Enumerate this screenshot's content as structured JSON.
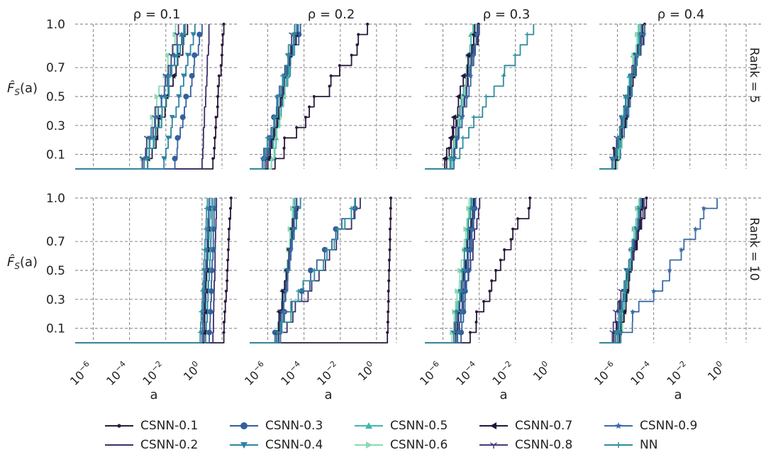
{
  "chart_data": {
    "type": "line",
    "title": "",
    "xlabel": "a",
    "ylabel": "F̂_S(a)",
    "x_scale": "log10",
    "xlim_log10": [
      -7,
      2
    ],
    "ylim": [
      0,
      1
    ],
    "x_tick_exponents": [
      -6,
      -4,
      -2,
      0
    ],
    "x_tick_base": "10",
    "y_ticks": [
      0.1,
      0.3,
      0.5,
      0.7,
      1.0
    ],
    "y_tick_labels": [
      "0.1",
      "0.3",
      "0.5",
      "0.7",
      "1.0"
    ],
    "col_titles": [
      "ρ = 0.1",
      "ρ = 0.2",
      "ρ = 0.3",
      "ρ = 0.4"
    ],
    "row_titles": [
      "Rank = 5",
      "Rank = 10"
    ],
    "series_colors": {
      "CSNN-0.1": "#2b1a3c",
      "CSNN-0.2": "#3a2f6b",
      "CSNN-0.3": "#34609c",
      "CSNN-0.4": "#2d83a4",
      "CSNN-0.5": "#3fb6ae",
      "CSNN-0.6": "#8ad9b4",
      "CSNN-0.7": "#24163a",
      "CSNN-0.8": "#413d7a",
      "CSNN-0.9": "#3a6ba6",
      "NN": "#2e8d9c"
    },
    "legend": [
      {
        "label": "CSNN-0.1",
        "marker": "dot"
      },
      {
        "label": "CSNN-0.2",
        "marker": "none"
      },
      {
        "label": "CSNN-0.3",
        "marker": "circle"
      },
      {
        "label": "CSNN-0.4",
        "marker": "triangle-down"
      },
      {
        "label": "CSNN-0.5",
        "marker": "triangle-up"
      },
      {
        "label": "CSNN-0.6",
        "marker": "triangle-right"
      },
      {
        "label": "CSNN-0.7",
        "marker": "triangle-left"
      },
      {
        "label": "CSNN-0.8",
        "marker": "tri"
      },
      {
        "label": "CSNN-0.9",
        "marker": "star"
      },
      {
        "label": "NN",
        "marker": "plus"
      }
    ],
    "legend_position": "bottom-center",
    "panels": [
      {
        "row": 0,
        "col": 0,
        "series": [
          {
            "name": "CSNN-0.1",
            "range_log10": [
              0.6,
              1.2
            ]
          },
          {
            "name": "CSNN-0.2",
            "range_log10": [
              0.0,
              0.4
            ]
          },
          {
            "name": "CSNN-0.3",
            "range_log10": [
              -1.5,
              0.0
            ]
          },
          {
            "name": "CSNN-0.4",
            "range_log10": [
              -2.1,
              -0.3
            ]
          },
          {
            "name": "CSNN-0.5",
            "range_log10": [
              -3.0,
              -1.0
            ]
          },
          {
            "name": "CSNN-0.6",
            "range_log10": [
              -3.3,
              -1.4
            ]
          },
          {
            "name": "CSNN-0.7",
            "range_log10": [
              -3.0,
              -0.8
            ]
          },
          {
            "name": "CSNN-0.8",
            "range_log10": [
              -3.3,
              -1.2
            ]
          },
          {
            "name": "CSNN-0.9",
            "range_log10": [
              -3.2,
              -1.0
            ]
          },
          {
            "name": "NN",
            "range_log10": [
              -3.0,
              -0.9
            ]
          }
        ]
      },
      {
        "row": 0,
        "col": 1,
        "series": [
          {
            "name": "CSNN-0.1",
            "range_log10": [
              -5.6,
              -0.5
            ]
          },
          {
            "name": "CSNN-0.2",
            "range_log10": [
              -6.0,
              -4.3
            ]
          },
          {
            "name": "CSNN-0.3",
            "range_log10": [
              -6.2,
              -4.2
            ]
          },
          {
            "name": "CSNN-0.4",
            "range_log10": [
              -6.0,
              -4.3
            ]
          },
          {
            "name": "CSNN-0.5",
            "range_log10": [
              -5.8,
              -4.4
            ]
          },
          {
            "name": "CSNN-0.6",
            "range_log10": [
              -5.8,
              -4.5
            ]
          },
          {
            "name": "CSNN-0.7",
            "range_log10": [
              -6.0,
              -4.4
            ]
          },
          {
            "name": "CSNN-0.8",
            "range_log10": [
              -6.1,
              -4.5
            ]
          },
          {
            "name": "CSNN-0.9",
            "range_log10": [
              -6.3,
              -4.4
            ]
          },
          {
            "name": "NN",
            "range_log10": [
              -6.2,
              -4.5
            ]
          }
        ]
      },
      {
        "row": 0,
        "col": 2,
        "series": [
          {
            "name": "CSNN-0.1",
            "range_log10": [
              -5.8,
              -4.0
            ]
          },
          {
            "name": "CSNN-0.2",
            "range_log10": [
              -5.6,
              -4.0
            ]
          },
          {
            "name": "CSNN-0.3",
            "range_log10": [
              -5.5,
              -4.2
            ]
          },
          {
            "name": "CSNN-0.4",
            "range_log10": [
              -5.6,
              -4.1
            ]
          },
          {
            "name": "CSNN-0.5",
            "range_log10": [
              -5.5,
              -4.3
            ]
          },
          {
            "name": "CSNN-0.6",
            "range_log10": [
              -5.6,
              -4.2
            ]
          },
          {
            "name": "CSNN-0.7",
            "range_log10": [
              -5.9,
              -4.2
            ]
          },
          {
            "name": "CSNN-0.8",
            "range_log10": [
              -5.4,
              -4.1
            ]
          },
          {
            "name": "CSNN-0.9",
            "range_log10": [
              -5.4,
              -4.0
            ]
          },
          {
            "name": "NN",
            "range_log10": [
              -5.6,
              -1.0
            ]
          }
        ]
      },
      {
        "row": 0,
        "col": 3,
        "series": [
          {
            "name": "CSNN-0.1",
            "range_log10": [
              -6.3,
              -4.5
            ]
          },
          {
            "name": "CSNN-0.2",
            "range_log10": [
              -6.2,
              -4.6
            ]
          },
          {
            "name": "CSNN-0.3",
            "range_log10": [
              -6.0,
              -4.7
            ]
          },
          {
            "name": "CSNN-0.4",
            "range_log10": [
              -6.0,
              -4.6
            ]
          },
          {
            "name": "CSNN-0.5",
            "range_log10": [
              -6.1,
              -4.8
            ]
          },
          {
            "name": "CSNN-0.6",
            "range_log10": [
              -6.0,
              -4.8
            ]
          },
          {
            "name": "CSNN-0.7",
            "range_log10": [
              -6.1,
              -4.6
            ]
          },
          {
            "name": "CSNN-0.8",
            "range_log10": [
              -6.3,
              -4.6
            ]
          },
          {
            "name": "CSNN-0.9",
            "range_log10": [
              -6.3,
              -4.5
            ]
          },
          {
            "name": "NN",
            "range_log10": [
              -6.2,
              -4.6
            ]
          }
        ]
      },
      {
        "row": 1,
        "col": 0,
        "series": [
          {
            "name": "CSNN-0.1",
            "range_log10": [
              1.2,
              1.6
            ]
          },
          {
            "name": "CSNN-0.2",
            "range_log10": [
              0.6,
              0.8
            ]
          },
          {
            "name": "CSNN-0.3",
            "range_log10": [
              0.4,
              0.7
            ]
          },
          {
            "name": "CSNN-0.4",
            "range_log10": [
              0.2,
              0.6
            ]
          },
          {
            "name": "CSNN-0.5",
            "range_log10": [
              0.1,
              0.5
            ]
          },
          {
            "name": "CSNN-0.6",
            "range_log10": [
              0.1,
              0.4
            ]
          },
          {
            "name": "CSNN-0.7",
            "range_log10": [
              0.1,
              0.4
            ]
          },
          {
            "name": "CSNN-0.8",
            "range_log10": [
              0.0,
              0.4
            ]
          },
          {
            "name": "CSNN-0.9",
            "range_log10": [
              0.0,
              0.4
            ]
          },
          {
            "name": "NN",
            "range_log10": [
              -0.1,
              0.3
            ]
          }
        ]
      },
      {
        "row": 1,
        "col": 1,
        "series": [
          {
            "name": "CSNN-0.1",
            "range_log10": [
              0.6,
              0.8
            ]
          },
          {
            "name": "CSNN-0.2",
            "range_log10": [
              -5.4,
              -0.9
            ]
          },
          {
            "name": "CSNN-0.3",
            "range_log10": [
              -5.6,
              -1.0
            ]
          },
          {
            "name": "CSNN-0.4",
            "range_log10": [
              -5.5,
              -4.2
            ]
          },
          {
            "name": "CSNN-0.5",
            "range_log10": [
              -5.4,
              -4.5
            ]
          },
          {
            "name": "CSNN-0.6",
            "range_log10": [
              -5.3,
              -4.6
            ]
          },
          {
            "name": "CSNN-0.7",
            "range_log10": [
              -5.5,
              -4.4
            ]
          },
          {
            "name": "CSNN-0.8",
            "range_log10": [
              -5.4,
              -4.4
            ]
          },
          {
            "name": "CSNN-0.9",
            "range_log10": [
              -5.3,
              -4.4
            ]
          },
          {
            "name": "NN",
            "range_log10": [
              -5.5,
              -1.2
            ]
          }
        ]
      },
      {
        "row": 1,
        "col": 2,
        "series": [
          {
            "name": "CSNN-0.1",
            "range_log10": [
              -4.5,
              -1.2
            ]
          },
          {
            "name": "CSNN-0.2",
            "range_log10": [
              -5.2,
              -3.9
            ]
          },
          {
            "name": "CSNN-0.3",
            "range_log10": [
              -5.0,
              -4.2
            ]
          },
          {
            "name": "CSNN-0.4",
            "range_log10": [
              -5.2,
              -4.3
            ]
          },
          {
            "name": "CSNN-0.5",
            "range_log10": [
              -5.4,
              -4.4
            ]
          },
          {
            "name": "CSNN-0.6",
            "range_log10": [
              -5.5,
              -4.5
            ]
          },
          {
            "name": "CSNN-0.7",
            "range_log10": [
              -5.3,
              -4.3
            ]
          },
          {
            "name": "CSNN-0.8",
            "range_log10": [
              -5.4,
              -4.2
            ]
          },
          {
            "name": "CSNN-0.9",
            "range_log10": [
              -5.2,
              -4.2
            ]
          },
          {
            "name": "NN",
            "range_log10": [
              -5.4,
              -4.4
            ]
          }
        ]
      },
      {
        "row": 1,
        "col": 3,
        "series": [
          {
            "name": "CSNN-0.1",
            "range_log10": [
              -6.2,
              -4.4
            ]
          },
          {
            "name": "CSNN-0.2",
            "range_log10": [
              -6.1,
              -4.6
            ]
          },
          {
            "name": "CSNN-0.3",
            "range_log10": [
              -6.0,
              -4.7
            ]
          },
          {
            "name": "CSNN-0.4",
            "range_log10": [
              -6.1,
              -4.7
            ]
          },
          {
            "name": "CSNN-0.5",
            "range_log10": [
              -5.9,
              -4.8
            ]
          },
          {
            "name": "CSNN-0.6",
            "range_log10": [
              -5.8,
              -4.8
            ]
          },
          {
            "name": "CSNN-0.7",
            "range_log10": [
              -5.9,
              -4.6
            ]
          },
          {
            "name": "CSNN-0.8",
            "range_log10": [
              -6.3,
              -4.5
            ]
          },
          {
            "name": "CSNN-0.9",
            "range_log10": [
              -5.9,
              -0.5
            ]
          },
          {
            "name": "NN",
            "range_log10": [
              -6.0,
              -4.7
            ]
          }
        ]
      }
    ]
  }
}
